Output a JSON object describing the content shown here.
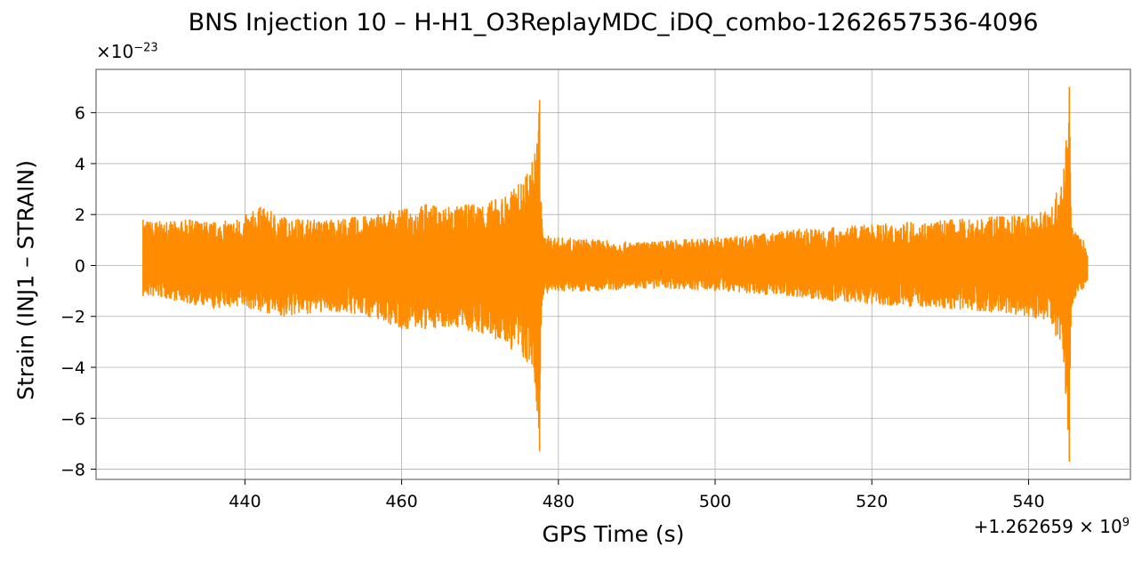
{
  "chart_data": {
    "type": "line",
    "title": "BNS Injection 10 – H-H1_O3ReplayMDC_iDQ_combo-1262657536-4096",
    "xlabel": "GPS Time (s)",
    "ylabel": "Strain (INJ1 – STRAIN)",
    "x_offset_label": "+1.262659 × 10",
    "x_offset_exponent": "9",
    "y_scale_label": "×10",
    "y_scale_exponent": "−23",
    "xlim": [
      421,
      553
    ],
    "ylim": [
      -8.4,
      7.7
    ],
    "xticks": [
      440,
      460,
      480,
      500,
      520,
      540
    ],
    "xtick_labels": [
      "440",
      "460",
      "480",
      "500",
      "520",
      "540"
    ],
    "yticks": [
      -8,
      -6,
      -4,
      -2,
      0,
      2,
      4,
      6
    ],
    "ytick_labels": [
      "−8",
      "−6",
      "−4",
      "−2",
      "0",
      "2",
      "4",
      "6"
    ],
    "grid": true,
    "color": "#ff8c00",
    "series": [
      {
        "x": [
          427.0,
          430.0,
          433.0,
          436.0,
          439.0,
          442.0,
          445.0,
          448.0,
          451.0,
          454.0,
          457.0,
          460.0,
          463.0,
          466.0,
          469.0,
          472.0,
          474.0,
          476.0,
          477.0,
          477.6,
          477.8,
          478.0,
          480.0,
          485.0,
          490.0,
          495.0,
          500.0,
          505.0,
          510.0,
          515.0,
          520.0,
          525.0,
          530.0,
          535.0,
          540.0,
          543.0,
          544.5,
          545.2,
          545.4,
          545.6,
          546.0,
          547.0,
          547.5
        ],
        "upper": [
          1.8,
          1.7,
          1.8,
          1.7,
          1.8,
          2.3,
          1.9,
          1.8,
          1.8,
          1.9,
          2.0,
          2.2,
          2.4,
          2.3,
          2.4,
          2.6,
          2.9,
          3.6,
          4.4,
          6.5,
          2.5,
          1.2,
          1.1,
          1.0,
          0.9,
          1.0,
          1.1,
          1.2,
          1.4,
          1.5,
          1.6,
          1.7,
          1.8,
          1.9,
          2.0,
          2.3,
          3.8,
          7.0,
          2.3,
          1.4,
          1.3,
          1.0,
          0.4
        ],
        "lower": [
          -1.2,
          -1.3,
          -1.5,
          -1.7,
          -1.6,
          -1.8,
          -2.0,
          -1.9,
          -1.8,
          -1.9,
          -2.1,
          -2.5,
          -2.5,
          -2.4,
          -2.6,
          -2.9,
          -3.3,
          -3.8,
          -4.6,
          -7.3,
          -2.3,
          -1.2,
          -1.0,
          -1.0,
          -0.9,
          -0.9,
          -1.0,
          -1.1,
          -1.2,
          -1.4,
          -1.5,
          -1.6,
          -1.7,
          -1.8,
          -2.0,
          -2.3,
          -3.8,
          -7.7,
          -2.4,
          -1.5,
          -1.2,
          -0.9,
          -0.6
        ]
      }
    ]
  }
}
